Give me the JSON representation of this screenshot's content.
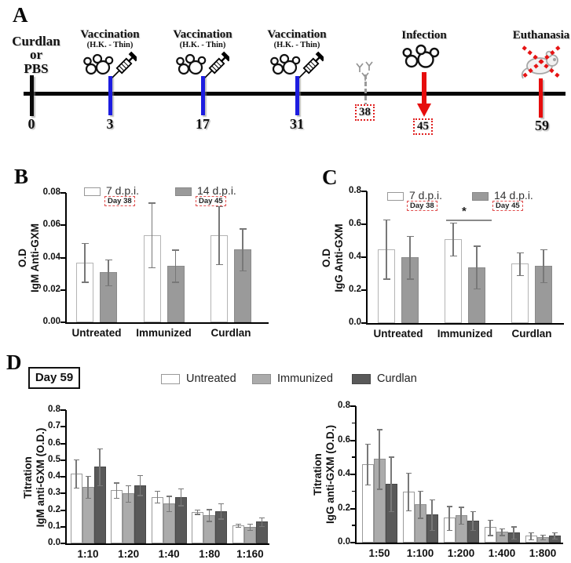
{
  "panels": {
    "a": "A",
    "b": "B",
    "c": "C",
    "d": "D"
  },
  "timeline": {
    "events": [
      {
        "day": "0",
        "label_lines": [
          "Curdlan",
          "or",
          "PBS"
        ],
        "tick_color": "#0a0a0a"
      },
      {
        "title": "Vaccination",
        "subtitle": "(H.K. - Thin)",
        "day": "3",
        "icon": "yeast-cells-and-syringe-icon",
        "tick_color": "#1d1de0"
      },
      {
        "title": "Vaccination",
        "subtitle": "(H.K. - Thin)",
        "day": "17",
        "icon": "yeast-cells-and-syringe-icon",
        "tick_color": "#1d1de0"
      },
      {
        "title": "Vaccination",
        "subtitle": "(H.K. - Thin)",
        "day": "31",
        "icon": "yeast-cells-and-syringe-icon",
        "tick_color": "#1d1de0"
      },
      {
        "day": "38",
        "icon": "antibody-icon",
        "tick_color": "#9a9a9a"
      },
      {
        "title": "Infection",
        "day": "45",
        "icon": "yeast-cells-icon",
        "arrow": "red-down-arrow-icon",
        "tick_color": "#e60d0d"
      },
      {
        "title": "Euthanasia",
        "day": "59",
        "icon": "euthanized-mouse-icon",
        "tick_color": "#e60d0d"
      }
    ]
  },
  "panel_d": {
    "day_box": "Day 59",
    "legend": [
      "Untreated",
      "Immunized",
      "Curdlan"
    ]
  },
  "colors": {
    "timeline_blue": "#1d1de0",
    "timeline_red": "#e60d0d",
    "dashed_tag_red": "#e05050",
    "bar_white": "#ffffff",
    "bar_gray": "#9a9a9a",
    "bar_lightgray": "#ababab",
    "bar_darkgray": "#595959",
    "error_bar": "#787878"
  },
  "chart_data": [
    {
      "id": "panel-b",
      "type": "bar",
      "panel": "B",
      "ylabel1": "O.D",
      "ylabel2": "IgM Anti-GXM",
      "categories": [
        "Untreated",
        "Immunized",
        "Curdlan"
      ],
      "ylim": [
        0,
        0.08
      ],
      "ytick_step": 0.02,
      "ytick_decimals": 2,
      "grid": false,
      "legend_position": "top",
      "series": [
        {
          "name": "7 d.p.i.",
          "sublabel": "Day 38",
          "color": "#ffffff",
          "border": "#b4b4b4",
          "values": [
            0.037,
            0.054,
            0.054
          ],
          "errors": [
            0.012,
            0.02,
            0.018
          ]
        },
        {
          "name": "14 d.p.i.",
          "sublabel": "Day 45",
          "color": "#9a9a9a",
          "border": "#8a8a8a",
          "values": [
            0.031,
            0.035,
            0.045
          ],
          "errors": [
            0.008,
            0.01,
            0.013
          ]
        }
      ]
    },
    {
      "id": "panel-c",
      "type": "bar",
      "panel": "C",
      "ylabel1": "O.D",
      "ylabel2": "IgG Anti-GXM",
      "categories": [
        "Untreated",
        "Immunized",
        "Curdlan"
      ],
      "ylim": [
        0,
        0.8
      ],
      "ytick_step": 0.2,
      "ytick_decimals": 1,
      "grid": false,
      "legend_position": "top",
      "series": [
        {
          "name": "7 d.p.i.",
          "sublabel": "Day 38",
          "color": "#ffffff",
          "border": "#b4b4b4",
          "values": [
            0.45,
            0.51,
            0.36
          ],
          "errors": [
            0.18,
            0.1,
            0.07
          ]
        },
        {
          "name": "14 d.p.i.",
          "sublabel": "Day 45",
          "color": "#9a9a9a",
          "border": "#8a8a8a",
          "values": [
            0.4,
            0.34,
            0.35
          ],
          "errors": [
            0.13,
            0.13,
            0.1
          ]
        }
      ],
      "annotation": {
        "text": "*",
        "category": "Immunized",
        "y": 0.63
      }
    },
    {
      "id": "panel-d-left",
      "type": "bar",
      "panel": "D",
      "ylabel1": "Titration",
      "ylabel2": "IgM anti-GXM (O.D.)",
      "categories": [
        "1:10",
        "1:20",
        "1:40",
        "1:80",
        "1:160"
      ],
      "ylim": [
        0,
        0.8
      ],
      "ytick_step": 0.1,
      "ytick_decimals": 1,
      "grid": false,
      "series": [
        {
          "name": "Untreated",
          "color": "#ffffff",
          "border": "#9a9a9a",
          "values": [
            0.42,
            0.32,
            0.28,
            0.19,
            0.11
          ],
          "errors": [
            0.085,
            0.045,
            0.035,
            0.012,
            0.01
          ]
        },
        {
          "name": "Immunized",
          "color": "#ababab",
          "border": "#8f8f8f",
          "values": [
            0.34,
            0.3,
            0.24,
            0.17,
            0.1
          ],
          "errors": [
            0.065,
            0.05,
            0.045,
            0.035,
            0.02
          ]
        },
        {
          "name": "Curdlan",
          "color": "#595959",
          "border": "#474747",
          "values": [
            0.46,
            0.35,
            0.28,
            0.195,
            0.13
          ],
          "errors": [
            0.11,
            0.06,
            0.05,
            0.045,
            0.025
          ]
        }
      ]
    },
    {
      "id": "panel-d-right",
      "type": "bar",
      "panel": "D",
      "ylabel1": "Titration",
      "ylabel2": "IgG anti-GXM (O.D.)",
      "categories": [
        "1:50",
        "1:100",
        "1:200",
        "1:400",
        "1:800"
      ],
      "ylim": [
        0,
        0.8
      ],
      "ytick_step": 0.2,
      "ytick_minor_step": 0.1,
      "ytick_decimals": 1,
      "grid": false,
      "series": [
        {
          "name": "Untreated",
          "color": "#ffffff",
          "border": "#9a9a9a",
          "values": [
            0.46,
            0.3,
            0.145,
            0.09,
            0.04
          ],
          "errors": [
            0.12,
            0.11,
            0.07,
            0.045,
            0.022
          ]
        },
        {
          "name": "Immunized",
          "color": "#ababab",
          "border": "#8f8f8f",
          "values": [
            0.49,
            0.225,
            0.16,
            0.065,
            0.033
          ],
          "errors": [
            0.175,
            0.08,
            0.05,
            0.02,
            0.013
          ]
        },
        {
          "name": "Curdlan",
          "color": "#595959",
          "border": "#474747",
          "values": [
            0.345,
            0.165,
            0.13,
            0.06,
            0.042
          ],
          "errors": [
            0.16,
            0.09,
            0.055,
            0.035,
            0.018
          ]
        }
      ]
    }
  ]
}
